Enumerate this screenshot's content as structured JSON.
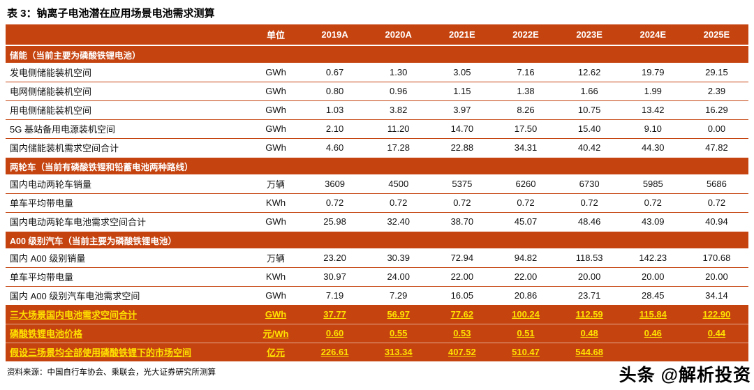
{
  "title": "表 3：钠离子电池潜在应用场景电池需求测算",
  "colors": {
    "header_bg": "#C5430F",
    "summary_text": "#FFE100"
  },
  "table": {
    "unit_header": "单位",
    "year_headers": [
      "2019A",
      "2020A",
      "2021E",
      "2022E",
      "2023E",
      "2024E",
      "2025E"
    ],
    "rows": [
      {
        "type": "section",
        "label": "储能（当前主要为磷酸铁锂电池）"
      },
      {
        "type": "data",
        "label": "发电侧储能装机空间",
        "unit": "GWh",
        "values": [
          "0.67",
          "1.30",
          "3.05",
          "7.16",
          "12.62",
          "19.79",
          "29.15"
        ]
      },
      {
        "type": "data",
        "label": "电网侧储能装机空间",
        "unit": "GWh",
        "values": [
          "0.80",
          "0.96",
          "1.15",
          "1.38",
          "1.66",
          "1.99",
          "2.39"
        ]
      },
      {
        "type": "data",
        "label": "用电侧储能装机空间",
        "unit": "GWh",
        "values": [
          "1.03",
          "3.82",
          "3.97",
          "8.26",
          "10.75",
          "13.42",
          "16.29"
        ]
      },
      {
        "type": "data",
        "label": "5G 基站备用电源装机空间",
        "unit": "GWh",
        "values": [
          "2.10",
          "11.20",
          "14.70",
          "17.50",
          "15.40",
          "9.10",
          "0.00"
        ]
      },
      {
        "type": "data",
        "label": "国内储能装机需求空间合计",
        "unit": "GWh",
        "values": [
          "4.60",
          "17.28",
          "22.88",
          "34.31",
          "40.42",
          "44.30",
          "47.82"
        ]
      },
      {
        "type": "section",
        "label": "两轮车（当前有磷酸铁锂和铅蓄电池两种路线）"
      },
      {
        "type": "data",
        "label": "国内电动两轮车销量",
        "unit": "万辆",
        "values": [
          "3609",
          "4500",
          "5375",
          "6260",
          "6730",
          "5985",
          "5686"
        ]
      },
      {
        "type": "data",
        "label": "单车平均带电量",
        "unit": "KWh",
        "values": [
          "0.72",
          "0.72",
          "0.72",
          "0.72",
          "0.72",
          "0.72",
          "0.72"
        ]
      },
      {
        "type": "data",
        "label": "国内电动两轮车电池需求空间合计",
        "unit": "GWh",
        "values": [
          "25.98",
          "32.40",
          "38.70",
          "45.07",
          "48.46",
          "43.09",
          "40.94"
        ]
      },
      {
        "type": "section",
        "label": "A00 级别汽车（当前主要为磷酸铁锂电池）"
      },
      {
        "type": "data",
        "label": "国内 A00 级别销量",
        "unit": "万辆",
        "values": [
          "23.20",
          "30.39",
          "72.94",
          "94.82",
          "118.53",
          "142.23",
          "170.68"
        ]
      },
      {
        "type": "data",
        "label": "单车平均带电量",
        "unit": "KWh",
        "values": [
          "30.97",
          "24.00",
          "22.00",
          "22.00",
          "20.00",
          "20.00",
          "20.00"
        ]
      },
      {
        "type": "data",
        "label": "国内 A00 级别汽车电池需求空间",
        "unit": "GWh",
        "values": [
          "7.19",
          "7.29",
          "16.05",
          "20.86",
          "23.71",
          "28.45",
          "34.14"
        ]
      },
      {
        "type": "summary",
        "label": "三大场景国内电池需求空间合计",
        "unit": "GWh",
        "values": [
          "37.77",
          "56.97",
          "77.62",
          "100.24",
          "112.59",
          "115.84",
          "122.90"
        ]
      },
      {
        "type": "summary",
        "label": "磷酸铁锂电池价格",
        "unit": "元/Wh",
        "values": [
          "0.60",
          "0.55",
          "0.53",
          "0.51",
          "0.48",
          "0.46",
          "0.44"
        ]
      },
      {
        "type": "summary",
        "label": "假设三场景均全部使用磷酸铁锂下的市场空间",
        "unit": "亿元",
        "values": [
          "226.61",
          "313.34",
          "407.52",
          "510.47",
          "544.68",
          "",
          ""
        ]
      }
    ]
  },
  "footer": {
    "source": "资料来源：中国自行车协会、乘联会，光大证券研究所测算"
  },
  "watermark": "头条 @解析投资"
}
